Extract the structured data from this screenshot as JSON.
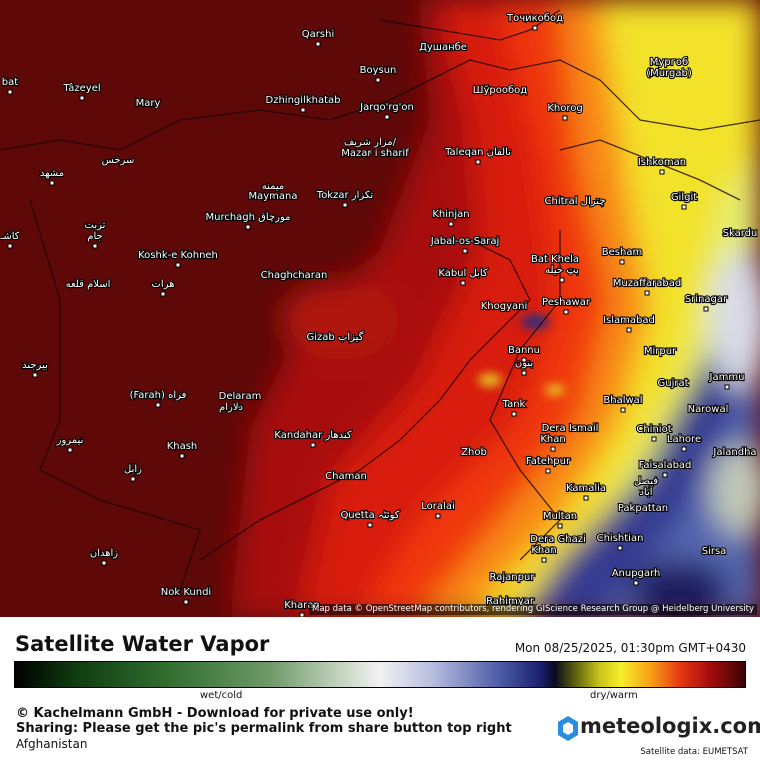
{
  "header": {
    "title": "Satellite Water Vapor",
    "date": "Mon 08/25/2025, 01:30pm GMT+0430"
  },
  "legend": {
    "left": "wet/cold",
    "right": "dry/warm"
  },
  "attribution": "Map data © OpenStreetMap contributors, rendering GIScience Research Group @ Heidelberg University",
  "footer": {
    "copyright": "© Kachelmann GmbH - Download for private use only!",
    "sharing": "Sharing: Please get the pic's permalink from share button top right",
    "region": "Afghanistan",
    "brand": "meteologix.com",
    "source": "Satellite data: EUMETSAT"
  },
  "cities": [
    {
      "label": "Qarshi"
    },
    {
      "label": "Boysun"
    },
    {
      "label": "Душанбе"
    },
    {
      "label": "Точикобод"
    },
    {
      "label": "Мургоб"
    },
    {
      "label": "(Murgab)"
    },
    {
      "label": "bat"
    },
    {
      "label": "Tâzeyel"
    },
    {
      "label": "Mary"
    },
    {
      "label": "Dzhingilkhatab"
    },
    {
      "label": "Jarqo'rg'on"
    },
    {
      "label": "Шўрообод"
    },
    {
      "label": "Khorog"
    },
    {
      "label": "مزار شریف/"
    },
    {
      "label": "Mazar i sharif"
    },
    {
      "label": "Taleqan تالقان"
    },
    {
      "label": "Ishkoman"
    },
    {
      "label": "سرخس"
    },
    {
      "label": "مشهد"
    },
    {
      "label": "میمنه"
    },
    {
      "label": "Maymana"
    },
    {
      "label": "Tokzar تکزار"
    },
    {
      "label": "Gilgit"
    },
    {
      "label": "Chitral چترال"
    },
    {
      "label": "Murchagh مورچاق"
    },
    {
      "label": "Khinjan"
    },
    {
      "label": "تربت"
    },
    {
      "label": "جام"
    },
    {
      "label": "کاشـ"
    },
    {
      "label": "Skardu"
    },
    {
      "label": "Jabal-os-Saraj"
    },
    {
      "label": "Besham"
    },
    {
      "label": "Bat Khela"
    },
    {
      "label": "بټ خیله"
    },
    {
      "label": "Koshk-e Kohneh"
    },
    {
      "label": "Chaghcharan"
    },
    {
      "label": "Kabul کابل"
    },
    {
      "label": "Muzaffarabad"
    },
    {
      "label": "اسلام قلعه"
    },
    {
      "label": "هرات"
    },
    {
      "label": "Srinagar"
    },
    {
      "label": "Khogyani"
    },
    {
      "label": "Peshawar"
    },
    {
      "label": "Islamabad"
    },
    {
      "label": "Gizab گیزاب"
    },
    {
      "label": "Bannu"
    },
    {
      "label": "بنون"
    },
    {
      "label": "Mirpur"
    },
    {
      "label": "بیرجند"
    },
    {
      "label": "Jammu"
    },
    {
      "label": "Gujrat"
    },
    {
      "label": "(Farah) فراه"
    },
    {
      "label": "Delaram"
    },
    {
      "label": "دلارام"
    },
    {
      "label": "Bhalwal"
    },
    {
      "label": "Tank"
    },
    {
      "label": "Dera Ismail"
    },
    {
      "label": "Khan"
    },
    {
      "label": "Chiniot"
    },
    {
      "label": "Narowal"
    },
    {
      "label": "Kandahar کندهار"
    },
    {
      "label": "Lahore"
    },
    {
      "label": "Jalandha"
    },
    {
      "label": "نیمروز"
    },
    {
      "label": "Khash"
    },
    {
      "label": "Zhob"
    },
    {
      "label": "Faisalabad"
    },
    {
      "label": "فیصل"
    },
    {
      "label": "آباد"
    },
    {
      "label": "Fatehpur"
    },
    {
      "label": "زابل"
    },
    {
      "label": "Chaman"
    },
    {
      "label": "Kamalia"
    },
    {
      "label": "Loralai"
    },
    {
      "label": "Pakpattan"
    },
    {
      "label": "Quetta کوئٹہ"
    },
    {
      "label": "Multan"
    },
    {
      "label": "Dera Ghazi"
    },
    {
      "label": "Khan"
    },
    {
      "label": "Chishtian"
    },
    {
      "label": "Sirsa"
    },
    {
      "label": "زاهدان"
    },
    {
      "label": "Anupgarh"
    },
    {
      "label": "Rajanpur"
    },
    {
      "label": "Nok Kundi"
    },
    {
      "label": "Kharan"
    },
    {
      "label": "Rahimyar"
    }
  ]
}
